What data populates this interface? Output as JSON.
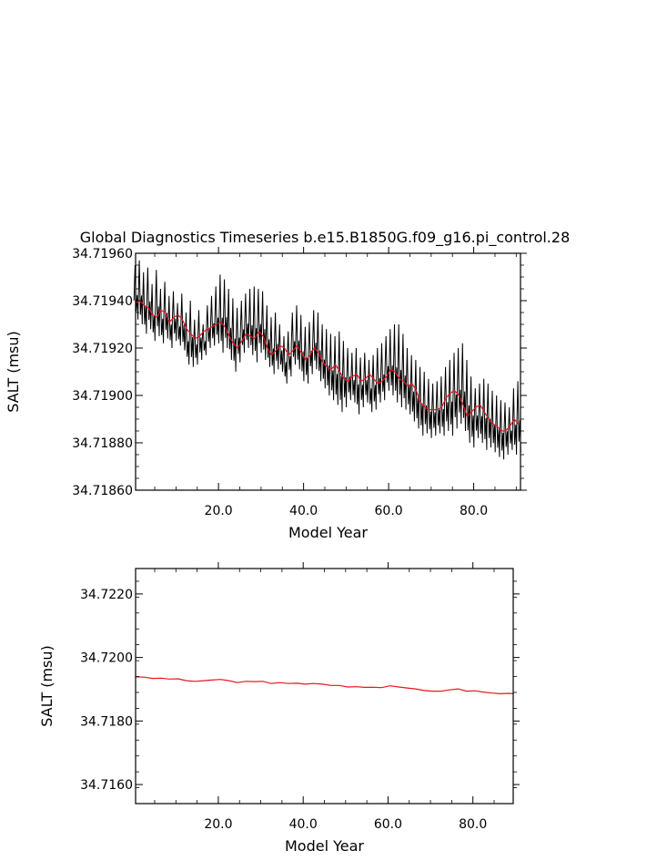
{
  "title": "Global Diagnostics Timeseries b.e15.B1850G.f09_g16.pi_control.28",
  "colors": {
    "monthly": "#000000",
    "annual": "#e8141e",
    "frame": "#000000"
  },
  "chart_data": [
    {
      "type": "line",
      "xlabel": "Model Year",
      "ylabel": "SALT (msu)",
      "xlim": [
        0.5,
        91
      ],
      "ylim": [
        34.7186,
        34.7196
      ],
      "xticks": [
        "20.0",
        "40.0",
        "60.0",
        "80.0"
      ],
      "yticks": [
        "34.71860",
        "34.71880",
        "34.71900",
        "34.71920",
        "34.71940",
        "34.71960"
      ],
      "series": [
        {
          "kind": "monthly",
          "x": [
            0.5,
            1.5,
            2.5,
            3.5,
            4.5,
            5.5,
            6.5,
            7.5,
            8.5,
            9.5,
            10.5,
            11.5,
            12.5,
            13.5,
            14.5,
            15.5,
            16.5,
            17.5,
            18.5,
            19.5,
            20.5,
            21.5,
            22.5,
            23.5,
            24.5,
            25.5,
            26.5,
            27.5,
            28.5,
            29.5,
            30.5,
            31.5,
            32.5,
            33.5,
            34.5,
            35.5,
            36.5,
            37.5,
            38.5,
            39.5,
            40.5,
            41.5,
            42.5,
            43.5,
            44.5,
            45.5,
            46.5,
            47.5,
            48.5,
            49.5,
            50.5,
            51.5,
            52.5,
            53.5,
            54.5,
            55.5,
            56.5,
            57.5,
            58.5,
            59.5,
            60.5,
            61.5,
            62.5,
            63.5,
            64.5,
            65.5,
            66.5,
            67.5,
            68.5,
            69.5,
            70.5,
            71.5,
            72.5,
            73.5,
            74.5,
            75.5,
            76.5,
            77.5,
            78.5,
            79.5,
            80.5,
            81.5,
            82.5,
            83.5,
            84.5,
            85.5,
            86.5,
            87.5,
            88.5,
            89.5,
            90.5
          ],
          "high": [
            34.71955,
            34.71957,
            34.71952,
            34.71954,
            34.71947,
            34.71953,
            34.71945,
            34.71948,
            34.71942,
            34.71944,
            34.71939,
            34.71943,
            34.71935,
            34.7194,
            34.71932,
            34.71936,
            34.7193,
            34.71938,
            34.71942,
            34.71946,
            34.71951,
            34.71949,
            34.71945,
            34.71941,
            34.71937,
            34.7194,
            34.71943,
            34.71945,
            34.71946,
            34.71945,
            34.71944,
            34.71938,
            34.71933,
            34.71935,
            34.7193,
            34.71925,
            34.71927,
            34.71935,
            34.71938,
            34.71934,
            34.71929,
            34.71931,
            34.71936,
            34.71935,
            34.7193,
            34.71928,
            34.71926,
            34.71925,
            34.71927,
            34.71923,
            34.7192,
            34.71918,
            34.7192,
            34.71916,
            34.71918,
            34.71915,
            34.71917,
            34.7192,
            34.71922,
            34.71925,
            34.71928,
            34.7193,
            34.7193,
            34.71926,
            34.7192,
            34.71917,
            34.71915,
            34.71912,
            34.7191,
            34.71907,
            34.71905,
            34.71906,
            34.71908,
            34.71912,
            34.71915,
            34.71918,
            34.7192,
            34.71922,
            34.71915,
            34.71908,
            34.71903,
            34.71905,
            34.71907,
            34.71905,
            34.71902,
            34.719,
            34.71898,
            34.71897,
            34.71895,
            34.71903,
            34.71906
          ],
          "low": [
            34.71932,
            34.7193,
            34.71926,
            34.71928,
            34.71923,
            34.71925,
            34.71922,
            34.71924,
            34.7192,
            34.71923,
            34.71921,
            34.71919,
            34.71913,
            34.71912,
            34.71913,
            34.71915,
            34.71917,
            34.7192,
            34.71921,
            34.71922,
            34.71918,
            34.7192,
            34.71915,
            34.7191,
            34.71914,
            34.71918,
            34.7192,
            34.71917,
            34.71914,
            34.71918,
            34.71915,
            34.71912,
            34.71909,
            34.71911,
            34.7191,
            34.71905,
            34.71908,
            34.71913,
            34.71911,
            34.71906,
            34.71905,
            34.71909,
            34.71911,
            34.71906,
            34.71903,
            34.719,
            34.71898,
            34.71896,
            34.71893,
            34.71895,
            34.71898,
            34.71897,
            34.71892,
            34.71895,
            34.71897,
            34.71893,
            34.71894,
            34.71897,
            34.71898,
            34.71902,
            34.719,
            34.71897,
            34.71895,
            34.71894,
            34.71892,
            34.71889,
            34.71886,
            34.71883,
            34.71884,
            34.71882,
            34.71883,
            34.71884,
            34.71883,
            34.71885,
            34.71883,
            34.71886,
            34.71888,
            34.71885,
            34.7188,
            34.71878,
            34.71882,
            34.7188,
            34.71877,
            34.71878,
            34.71876,
            34.71874,
            34.71873,
            34.71875,
            34.71877,
            34.71875,
            34.71876
          ]
        },
        {
          "kind": "annual",
          "x": [
            0.5,
            1.5,
            2.5,
            3.5,
            4.5,
            5.5,
            6.5,
            7.5,
            8.5,
            9.5,
            10.5,
            11.5,
            12.5,
            13.5,
            14.5,
            15.5,
            16.5,
            17.5,
            18.5,
            19.5,
            20.5,
            21.5,
            22.5,
            23.5,
            24.5,
            25.5,
            26.5,
            27.5,
            28.5,
            29.5,
            30.5,
            31.5,
            32.5,
            33.5,
            34.5,
            35.5,
            36.5,
            37.5,
            38.5,
            39.5,
            40.5,
            41.5,
            42.5,
            43.5,
            44.5,
            45.5,
            46.5,
            47.5,
            48.5,
            49.5,
            50.5,
            51.5,
            52.5,
            53.5,
            54.5,
            55.5,
            56.5,
            57.5,
            58.5,
            59.5,
            60.5,
            61.5,
            62.5,
            63.5,
            64.5,
            65.5,
            66.5,
            67.5,
            68.5,
            69.5,
            70.5,
            71.5,
            72.5,
            73.5,
            74.5,
            75.5,
            76.5,
            77.5,
            78.5,
            79.5,
            80.5,
            81.5,
            82.5,
            83.5,
            84.5,
            85.5,
            86.5,
            87.5,
            88.5,
            89.5,
            90.5
          ],
          "y": [
            34.71939,
            34.7194,
            34.71938,
            34.71937,
            34.71934,
            34.71933,
            34.71936,
            34.71935,
            34.71931,
            34.71933,
            34.71934,
            34.71932,
            34.71928,
            34.71926,
            34.71924,
            34.71925,
            34.71927,
            34.71928,
            34.71929,
            34.7193,
            34.71931,
            34.71929,
            34.71925,
            34.71922,
            34.7192,
            34.71923,
            34.71926,
            34.71925,
            34.71924,
            34.71927,
            34.71925,
            34.7192,
            34.71917,
            34.71919,
            34.71921,
            34.7192,
            34.71917,
            34.71919,
            34.71921,
            34.71918,
            34.71915,
            34.71917,
            34.7192,
            34.71918,
            34.71914,
            34.71912,
            34.71911,
            34.71913,
            34.7191,
            34.71907,
            34.71906,
            34.71908,
            34.71909,
            34.71906,
            34.71907,
            34.71909,
            34.71907,
            34.71905,
            34.71906,
            34.71908,
            34.71911,
            34.7191,
            34.71907,
            34.71906,
            34.71904,
            34.71905,
            34.71902,
            34.71897,
            34.71895,
            34.71894,
            34.71894,
            34.71894,
            34.71895,
            34.71899,
            34.71901,
            34.71902,
            34.719,
            34.71896,
            34.71891,
            34.71893,
            34.71895,
            34.71896,
            34.71893,
            34.7189,
            34.71888,
            34.71887,
            34.71885,
            34.71885,
            34.71887,
            34.7189,
            34.71888
          ]
        }
      ]
    },
    {
      "type": "line",
      "xlabel": "Model Year",
      "ylabel": "SALT (msu)",
      "xlim": [
        0.5,
        89.5
      ],
      "ylim": [
        34.7154,
        34.7228
      ],
      "xticks": [
        "20.0",
        "40.0",
        "60.0",
        "80.0"
      ],
      "yticks": [
        "34.7160",
        "34.7180",
        "34.7200",
        "34.7220"
      ],
      "series": [
        {
          "kind": "annual",
          "x": [
            0.5,
            2.5,
            4.5,
            6.5,
            8.5,
            10.5,
            12.5,
            14.5,
            16.5,
            18.5,
            20.5,
            22.5,
            24.5,
            26.5,
            28.5,
            30.5,
            32.5,
            34.5,
            36.5,
            38.5,
            40.5,
            42.5,
            44.5,
            46.5,
            48.5,
            50.5,
            52.5,
            54.5,
            56.5,
            58.5,
            60.5,
            62.5,
            64.5,
            66.5,
            68.5,
            70.5,
            72.5,
            74.5,
            76.5,
            78.5,
            80.5,
            82.5,
            84.5,
            86.5,
            88.5,
            89.5
          ],
          "y": [
            34.71939,
            34.71938,
            34.71934,
            34.71935,
            34.71932,
            34.71933,
            34.71927,
            34.71925,
            34.71927,
            34.71929,
            34.71931,
            34.71927,
            34.71921,
            34.71925,
            34.71924,
            34.71925,
            34.71918,
            34.71921,
            34.71918,
            34.71919,
            34.71916,
            34.71918,
            34.71916,
            34.71912,
            34.71912,
            34.71907,
            34.71908,
            34.71906,
            34.71906,
            34.71905,
            34.71911,
            34.71907,
            34.71904,
            34.71901,
            34.71896,
            34.71894,
            34.71894,
            34.71898,
            34.71901,
            34.71894,
            34.71895,
            34.71891,
            34.71888,
            34.71886,
            34.71887,
            34.71886
          ]
        }
      ]
    }
  ]
}
